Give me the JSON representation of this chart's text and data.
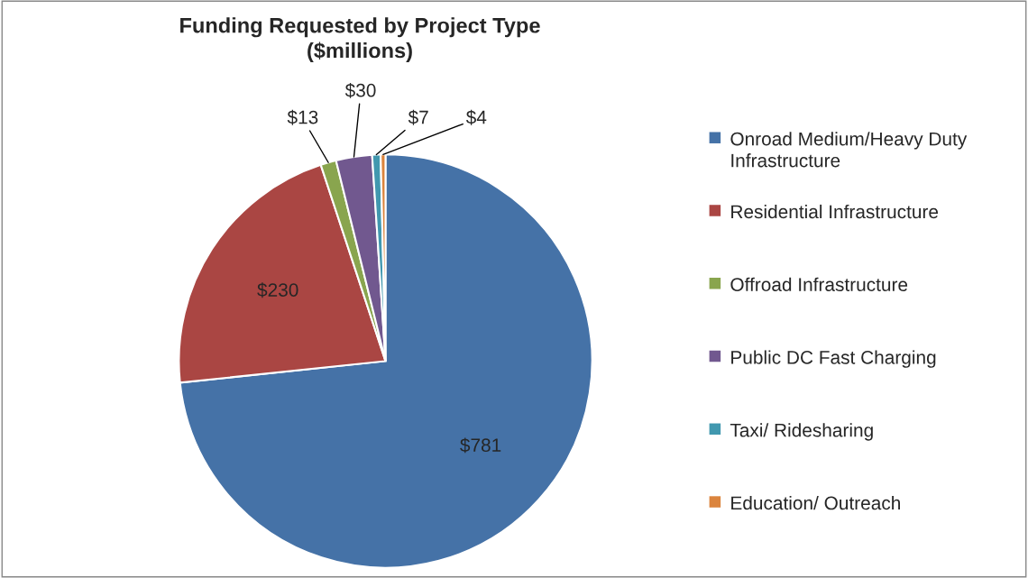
{
  "chart_data": {
    "type": "pie",
    "title": "Funding Requested by Project Type\n($millions)",
    "categories": [
      "Onroad Medium/Heavy Duty Infrastructure",
      "Residential Infrastructure",
      "Offroad Infrastructure",
      "Public DC Fast Charging",
      "Taxi/ Ridesharing",
      "Education/ Outreach"
    ],
    "values": [
      781,
      230,
      13,
      30,
      7,
      4
    ],
    "value_labels": [
      "$781",
      "$230",
      "$13",
      "$30",
      "$7",
      "$4"
    ],
    "colors": [
      "#4572a7",
      "#aa4643",
      "#89a54e",
      "#71588f",
      "#4198af",
      "#db843d"
    ],
    "legend": "right"
  }
}
